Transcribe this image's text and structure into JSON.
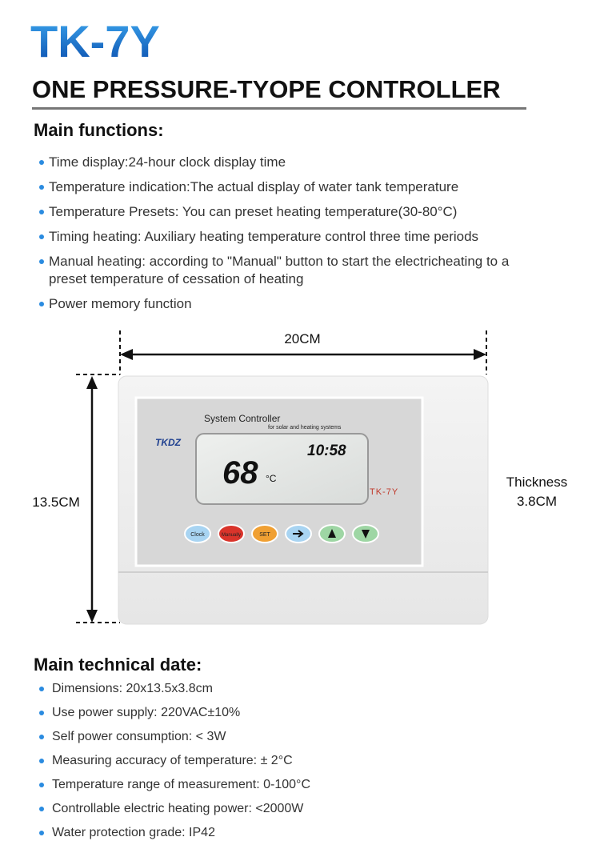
{
  "header": {
    "model": "TK-7Y",
    "title": "ONE PRESSURE-TYOPE CONTROLLER"
  },
  "main_functions": {
    "heading": "Main functions:",
    "items": [
      "Time display:24-hour clock display time",
      "Temperature indication:The actual display of water tank temperature",
      "Temperature Presets: You can preset heating temperature(30-80°C)",
      "Timing heating: Auxiliary heating temperature control three time periods",
      "Manual heating: according to \"Manual\" button to start the electricheating to a preset temperature of cessation of heating",
      "Power memory function"
    ]
  },
  "diagram": {
    "width_label": "20CM",
    "height_label": "13.5CM",
    "thickness_label": "Thickness",
    "thickness_value": "3.8CM"
  },
  "device": {
    "panel_title": "System Controller",
    "panel_subtitle": "for solar and heating systems",
    "brand": "TKDZ",
    "clock": "10:58",
    "temperature": "68",
    "unit": "°C",
    "model": "TK-7Y",
    "buttons": [
      "Clock",
      "Manually",
      "SET"
    ]
  },
  "technical": {
    "heading": "Main technical date:",
    "items": [
      "Dimensions: 20x13.5x3.8cm",
      "Use power supply: 220VAC±10%",
      "Self power consumption: < 3W",
      "Measuring accuracy of temperature: ± 2°C",
      "Temperature range of measurement: 0-100°C",
      "Controllable electric heating power: <2000W",
      "Water protection grade: IP42"
    ]
  }
}
